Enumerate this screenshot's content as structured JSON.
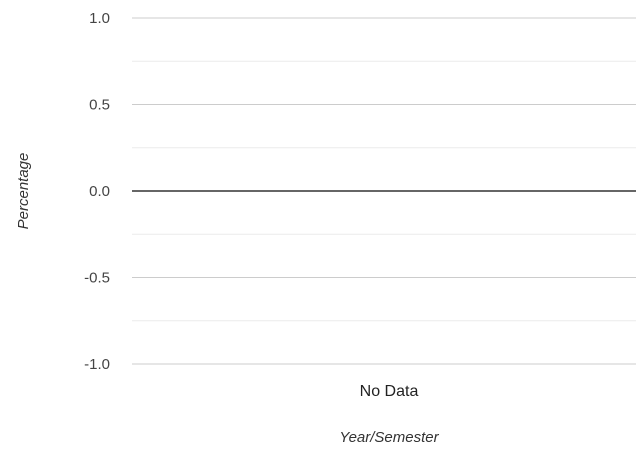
{
  "chart_data": {
    "type": "line",
    "title": "",
    "xlabel": "Year/Semester",
    "ylabel": "Percentage",
    "categories": [
      "No Data"
    ],
    "series": [],
    "ylim": [
      -1.0,
      1.0
    ],
    "y_ticks": [
      "1.0",
      "0.5",
      "0.0",
      "-0.5",
      "-1.0"
    ],
    "y_tick_values": [
      1.0,
      0.5,
      0.0,
      -0.5,
      -1.0
    ],
    "minor_gridlines": [
      0.75,
      0.25,
      -0.25,
      -0.75
    ],
    "baseline_value": 0.0,
    "grid": true,
    "legend": "none"
  },
  "colors": {
    "gridline": "#cccccc",
    "minor_gridline": "#ebebeb",
    "baseline": "#333333"
  }
}
